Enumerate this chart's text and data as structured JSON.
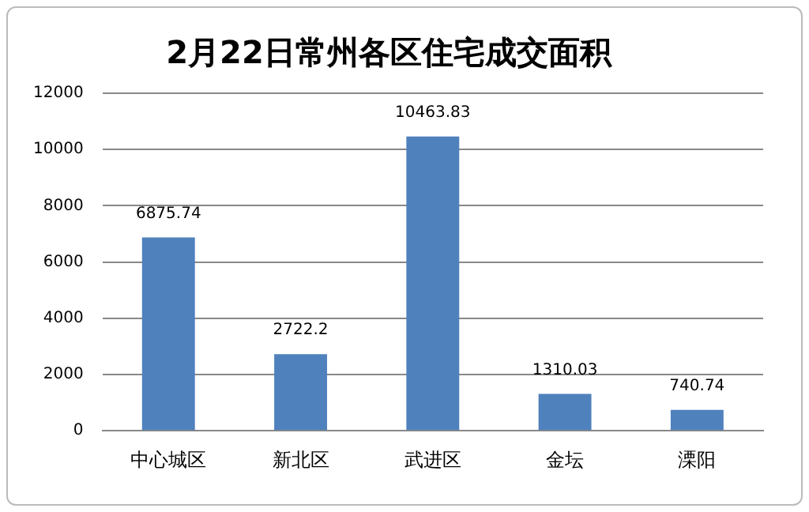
{
  "chart_data": {
    "type": "bar",
    "title": "2月22日常州各区住宅成交面积",
    "categories": [
      "中心城区",
      "新北区",
      "武进区",
      "金坛",
      "溧阳"
    ],
    "values": [
      6875.74,
      2722.2,
      10463.83,
      1310.03,
      740.74
    ],
    "color": "#4f81bd",
    "ylim": [
      0,
      12000
    ],
    "yticks": [
      0,
      2000,
      4000,
      6000,
      8000,
      10000,
      12000
    ],
    "grid": "y",
    "legend": false,
    "data_labels": true
  }
}
